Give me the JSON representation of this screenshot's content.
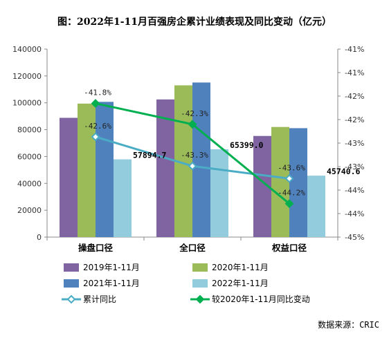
{
  "chart_data": {
    "type": "bar",
    "title": "图：2022年1-11月百强房企累计业绩表现及同比变动（亿元）",
    "source": "数据来源：CRIC",
    "categories": [
      "操盘口径",
      "全口径",
      "权益口径"
    ],
    "y_left": {
      "min": 0,
      "max": 140000,
      "step": 20000,
      "ticks": [
        "0",
        "20000",
        "40000",
        "60000",
        "80000",
        "100000",
        "120000",
        "140000"
      ]
    },
    "y_right": {
      "min": -45,
      "max": -40.5,
      "ticks": [
        "-45%",
        "-44%",
        "-44%",
        "-43%",
        "-43%",
        "-42%",
        "-42%",
        "-41%",
        "-41%"
      ]
    },
    "series": [
      {
        "name": "2019年1-11月",
        "type": "bar",
        "color": "#8064a2",
        "values": [
          88800,
          102500,
          75300
        ]
      },
      {
        "name": "2020年1-11月",
        "type": "bar",
        "color": "#9bbb59",
        "values": [
          99400,
          113000,
          82000
        ]
      },
      {
        "name": "2021年1-11月",
        "type": "bar",
        "color": "#4f81bd",
        "values": [
          100700,
          115100,
          81100
        ]
      },
      {
        "name": "2022年1-11月",
        "type": "bar",
        "color": "#93cddd",
        "values": [
          57894.7,
          65399.0,
          45740.6
        ],
        "labels": [
          "57894.7",
          "65399.0",
          "45740.6"
        ]
      },
      {
        "name": "累计同比",
        "type": "line",
        "axis": "right",
        "color": "#4bacc6",
        "values": [
          -42.6,
          -43.3,
          -43.6
        ],
        "labels": [
          "-42.6%",
          "-43.3%",
          "-43.6%"
        ]
      },
      {
        "name": "较2020年1-11月同比变动",
        "type": "line",
        "axis": "right",
        "color": "#00b050",
        "values": [
          -41.8,
          -42.3,
          -44.2
        ],
        "labels": [
          "-41.8%",
          "-42.3%",
          "-44.2%"
        ]
      }
    ],
    "legend_position": "bottom"
  }
}
